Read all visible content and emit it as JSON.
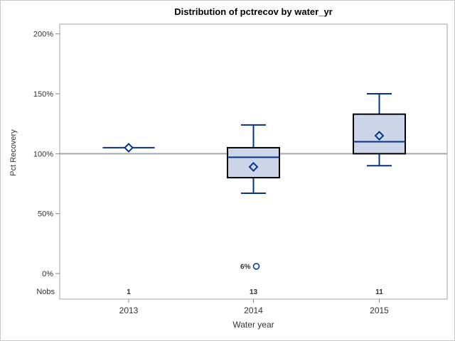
{
  "window": {
    "background": "#ffffff",
    "border_color": "#c8c8c8"
  },
  "chart_data": {
    "type": "boxplot",
    "title": "Distribution of pctrecov by water_yr",
    "xlabel": "Water year",
    "ylabel": "Pct Recovery",
    "y_ticks": [
      {
        "value": 0,
        "label": "0%"
      },
      {
        "value": 50,
        "label": "50%"
      },
      {
        "value": 100,
        "label": "100%"
      },
      {
        "value": 150,
        "label": "150%"
      },
      {
        "value": 200,
        "label": "200%"
      }
    ],
    "ylim": [
      -21,
      208
    ],
    "grid": "off",
    "reference_line_value": 100,
    "nobs_row_label": "Nobs",
    "categories": [
      "2013",
      "2014",
      "2015"
    ],
    "nobs": [
      "1",
      "13",
      "11"
    ],
    "series": [
      {
        "category": "2013",
        "nobs": "1",
        "min": 105,
        "q1": 105,
        "median": 105,
        "q3": 105,
        "max": 105,
        "mean": 105,
        "outliers": []
      },
      {
        "category": "2014",
        "nobs": "13",
        "min": 67,
        "q1": 80,
        "median": 97,
        "q3": 105,
        "max": 124,
        "mean": 89,
        "outliers": [
          {
            "value": 6,
            "label": "6%"
          }
        ]
      },
      {
        "category": "2015",
        "nobs": "11",
        "min": 90,
        "q1": 100,
        "median": 110,
        "q3": 133,
        "max": 150,
        "mean": 115,
        "outliers": []
      }
    ],
    "colors": {
      "box_fill": "#ccd6e8",
      "box_border": "#000000",
      "line": "#00338d",
      "reference_line": "#a3a8ad",
      "frame": "#a6a6a6",
      "tick": "#868686",
      "text": "#333333"
    }
  }
}
